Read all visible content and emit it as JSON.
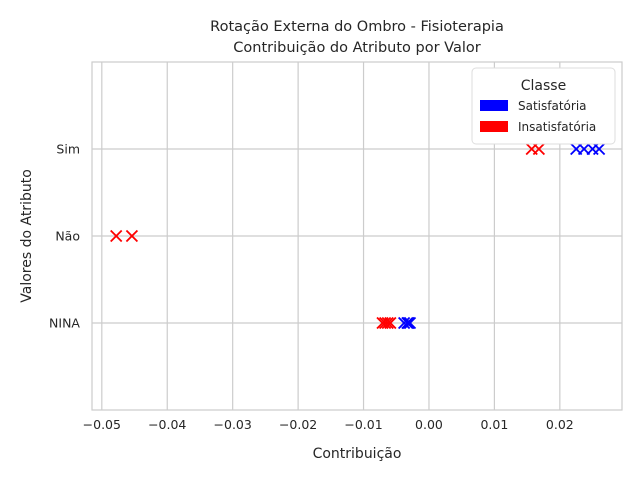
{
  "chart_data": {
    "type": "scatter",
    "title": "Rotação Externa do Ombro - Fisioterapia",
    "subtitle": "Contribuição do Atributo por Valor",
    "xlabel": "Contribuição",
    "ylabel": "Valores do Atributo",
    "xlim": [
      -0.0515,
      0.0295
    ],
    "x_ticks": [
      -0.05,
      -0.04,
      -0.03,
      -0.02,
      -0.01,
      0.0,
      0.01,
      0.02
    ],
    "x_tick_labels": [
      "−0.05",
      "−0.04",
      "−0.03",
      "−0.02",
      "−0.01",
      "0.00",
      "0.01",
      "0.02"
    ],
    "categories": [
      "Sim",
      "Não",
      "NINA"
    ],
    "grid": true,
    "marker": "x",
    "legend": {
      "title": "Classe",
      "position": "top-right"
    },
    "series": [
      {
        "name": "Satisfatória",
        "color": "#0000ff",
        "points": [
          {
            "category": "Sim",
            "x": 0.0225
          },
          {
            "category": "Sim",
            "x": 0.0237
          },
          {
            "category": "Sim",
            "x": 0.025
          },
          {
            "category": "Sim",
            "x": 0.026
          },
          {
            "category": "NINA",
            "x": -0.0038
          },
          {
            "category": "NINA",
            "x": -0.0033
          },
          {
            "category": "NINA",
            "x": -0.0031
          },
          {
            "category": "NINA",
            "x": -0.0029
          }
        ]
      },
      {
        "name": "Insatisfatória",
        "color": "#ff0000",
        "points": [
          {
            "category": "Sim",
            "x": 0.0157
          },
          {
            "category": "Sim",
            "x": 0.0168
          },
          {
            "category": "Não",
            "x": -0.0478
          },
          {
            "category": "Não",
            "x": -0.0454
          },
          {
            "category": "NINA",
            "x": -0.0071
          },
          {
            "category": "NINA",
            "x": -0.0067
          },
          {
            "category": "NINA",
            "x": -0.0063
          },
          {
            "category": "NINA",
            "x": -0.0059
          }
        ]
      }
    ]
  }
}
